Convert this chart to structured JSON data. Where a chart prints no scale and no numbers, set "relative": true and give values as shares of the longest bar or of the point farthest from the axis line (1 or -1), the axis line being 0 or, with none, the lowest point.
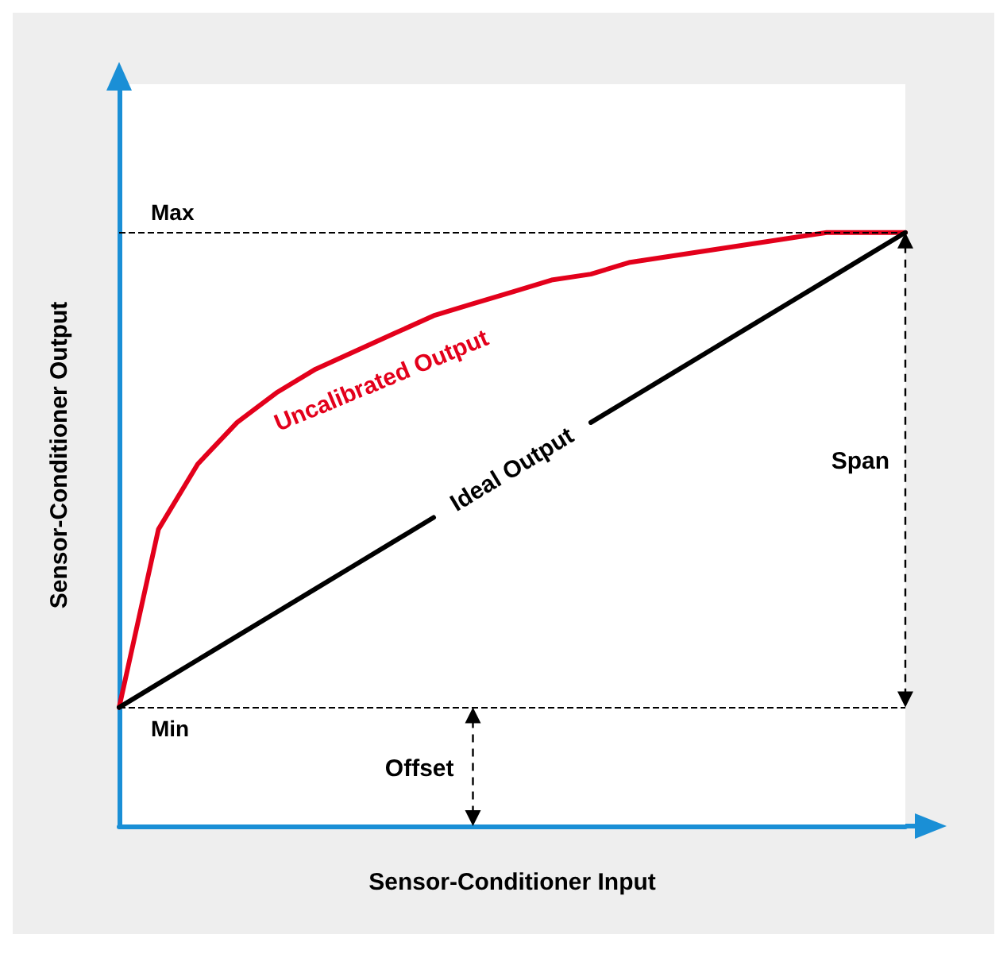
{
  "chart_data": {
    "type": "line",
    "relative": true,
    "xlabel": "Sensor-Conditioner Input",
    "ylabel": "Sensor-Conditioner Output",
    "categories": [
      null,
      null,
      null,
      null,
      null,
      null,
      null,
      null,
      null,
      null,
      null,
      null,
      null,
      null,
      null,
      null,
      null,
      null,
      null,
      null,
      null
    ],
    "series": [
      {
        "name": "Uncalibrated Output",
        "color": "#e3001b",
        "values": [
          0.2,
          0.5,
          0.61,
          0.68,
          0.73,
          0.77,
          0.8,
          0.83,
          0.86,
          0.88,
          0.9,
          0.92,
          0.93,
          0.95,
          0.96,
          0.97,
          0.98,
          0.99,
          1.0,
          1.0,
          1.0
        ]
      },
      {
        "name": "Ideal Output",
        "color": "#000000",
        "values": [
          0.2,
          0.24,
          0.28,
          0.32,
          0.36,
          0.4,
          0.44,
          0.48,
          0.52,
          null,
          null,
          null,
          0.68,
          0.72,
          0.76,
          0.8,
          0.84,
          0.88,
          0.92,
          0.96,
          1.0
        ]
      }
    ],
    "ref_lines": [
      {
        "axis": "y",
        "value": 1.0,
        "label": "Max",
        "color": "#000000",
        "line_style": "dashed"
      },
      {
        "axis": "y",
        "value": 0.2,
        "label": "Min",
        "color": "#000000",
        "line_style": "dashed"
      }
    ],
    "annotations": [
      "Span",
      "Offset"
    ],
    "grid": false,
    "legend": false,
    "marker": "none",
    "line_style": "solid"
  }
}
